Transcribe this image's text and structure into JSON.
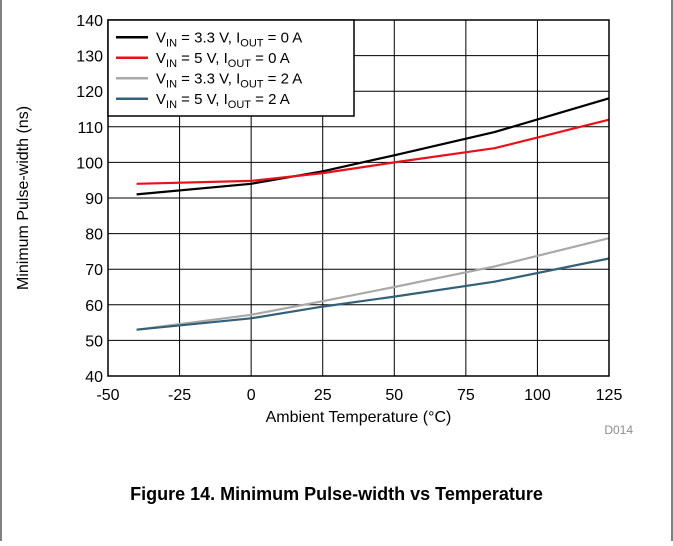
{
  "figure": {
    "caption": "Figure 14. Minimum Pulse-width vs Temperature",
    "ref": "D014"
  },
  "chart_data": {
    "type": "line",
    "xlabel": "Ambient Temperature  (°C)",
    "ylabel": "Minimum Pulse-width (ns)",
    "xlim": [
      -50,
      125
    ],
    "ylim": [
      40,
      140
    ],
    "xticks": [
      -50,
      -25,
      0,
      25,
      50,
      75,
      100,
      125
    ],
    "yticks": [
      40,
      50,
      60,
      70,
      80,
      90,
      100,
      110,
      120,
      130,
      140
    ],
    "grid": true,
    "legend_position": "top-left",
    "series": [
      {
        "label_parts": [
          [
            "V",
            ""
          ],
          [
            "IN",
            "sub"
          ],
          [
            " = 3.3 V, I",
            ""
          ],
          [
            "OUT",
            "sub"
          ],
          [
            " = 0 A",
            ""
          ]
        ],
        "color": "#000000",
        "x": [
          -40,
          0,
          25,
          50,
          85,
          125
        ],
        "y": [
          91,
          94,
          97.5,
          102,
          108.5,
          118
        ]
      },
      {
        "label_parts": [
          [
            "V",
            ""
          ],
          [
            "IN",
            "sub"
          ],
          [
            " = 5 V, I",
            ""
          ],
          [
            "OUT",
            "sub"
          ],
          [
            " = 0 A",
            ""
          ]
        ],
        "color": "#e8111b",
        "x": [
          -40,
          0,
          25,
          50,
          85,
          125
        ],
        "y": [
          94,
          94.8,
          97,
          100,
          104,
          112
        ]
      },
      {
        "label_parts": [
          [
            "V",
            ""
          ],
          [
            "IN",
            "sub"
          ],
          [
            " = 3.3 V, I",
            ""
          ],
          [
            "OUT",
            "sub"
          ],
          [
            " = 2 A",
            ""
          ]
        ],
        "color": "#a9a9a9",
        "x": [
          -40,
          0,
          25,
          50,
          85,
          125
        ],
        "y": [
          53,
          57.2,
          61,
          65,
          70.8,
          78.7
        ]
      },
      {
        "label_parts": [
          [
            "V",
            ""
          ],
          [
            "IN",
            "sub"
          ],
          [
            " = 5 V, I",
            ""
          ],
          [
            "OUT",
            "sub"
          ],
          [
            " = 2 A",
            ""
          ]
        ],
        "color": "#34607a",
        "x": [
          -40,
          0,
          25,
          50,
          85,
          125
        ],
        "y": [
          53,
          56.2,
          59.5,
          62.3,
          66.5,
          73
        ]
      }
    ]
  }
}
